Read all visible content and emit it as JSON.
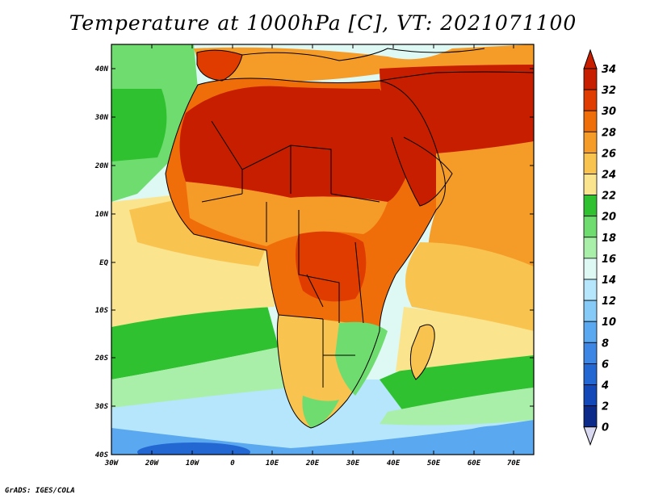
{
  "title": "Temperature at 1000hPa [C], VT: 2021071100",
  "credit": "GrADS: IGES/COLA",
  "lat_labels": [
    "40N",
    "30N",
    "20N",
    "10N",
    "EQ",
    "10S",
    "20S",
    "30S",
    "40S"
  ],
  "lon_labels": [
    "30W",
    "20W",
    "10W",
    "0",
    "10E",
    "20E",
    "30E",
    "40E",
    "50E",
    "60E",
    "70E"
  ],
  "colorbar": {
    "labels": [
      "34",
      "32",
      "30",
      "28",
      "26",
      "24",
      "22",
      "20",
      "18",
      "16",
      "14",
      "12",
      "10",
      "8",
      "6",
      "4",
      "2",
      "0"
    ],
    "colors": [
      "#c81e00",
      "#e03c00",
      "#f06e0a",
      "#f59b28",
      "#f9c34f",
      "#fbe48e",
      "#2fc12f",
      "#6fdc6f",
      "#a9efa9",
      "#def9f4",
      "#b5e6fb",
      "#86cbf7",
      "#5aa8ef",
      "#3d86e3",
      "#2367d3",
      "#1248b8",
      "#0b2a8a",
      "#ffffff"
    ],
    "top_arrow_color": "#c81e00",
    "bottom_arrow_color": "#d8d8f0"
  },
  "palette": {
    "ocean_cool": "#b5e6fb",
    "ocean_mild": "#def9f4",
    "green": "#6fdc6f",
    "dark_green": "#2fc12f",
    "light_green": "#a9efa9",
    "yellow": "#fbe48e",
    "light_orange": "#f9c34f",
    "orange": "#f59b28",
    "dark_orange": "#f06e0a",
    "red_orange": "#e03c00",
    "red": "#c81e00",
    "blue": "#5aa8ef",
    "deep_blue": "#2367d3",
    "border": "#000000"
  }
}
